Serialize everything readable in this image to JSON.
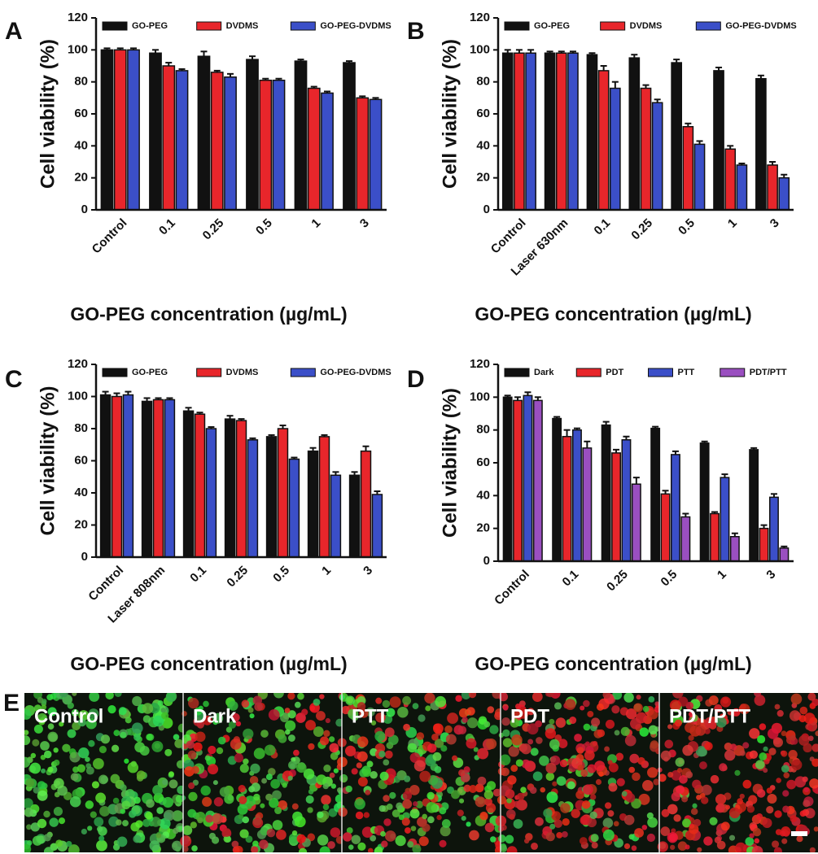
{
  "panel_labels": [
    "A",
    "B",
    "C",
    "D",
    "E"
  ],
  "chart_data": [
    {
      "type": "bar",
      "y_label": "Cell viability (%)",
      "x_label": "GO-PEG concentration (µg/mL)",
      "categories": [
        "Control",
        "0.1",
        "0.25",
        "0.5",
        "1",
        "3"
      ],
      "series": [
        {
          "name": "GO-PEG",
          "color": "#111111",
          "values": [
            100,
            98,
            96,
            94,
            93,
            92
          ],
          "errors": [
            1,
            2,
            3,
            2,
            1,
            1
          ]
        },
        {
          "name": "DVDMS",
          "color": "#e8262b",
          "values": [
            100,
            90,
            86,
            81,
            76,
            70
          ],
          "errors": [
            1,
            2,
            1,
            1,
            1,
            1
          ]
        },
        {
          "name": "GO-PEG-DVDMS",
          "color": "#3b4fc8",
          "values": [
            100,
            87,
            83,
            81,
            73,
            69
          ],
          "errors": [
            1,
            1,
            2,
            1,
            1,
            1
          ]
        }
      ],
      "ylim": [
        0,
        120
      ],
      "yticks": [
        0,
        20,
        40,
        60,
        80,
        100,
        120
      ],
      "legend": "top"
    },
    {
      "type": "bar",
      "y_label": "Cell viability (%)",
      "x_label": "GO-PEG concentration (µg/mL)",
      "categories": [
        "Control",
        "Laser 630nm",
        "0.1",
        "0.25",
        "0.5",
        "1",
        "3"
      ],
      "series": [
        {
          "name": "GO-PEG",
          "color": "#111111",
          "values": [
            98,
            98,
            97,
            95,
            92,
            87,
            82
          ],
          "errors": [
            2,
            1,
            1,
            2,
            2,
            2,
            2
          ]
        },
        {
          "name": "DVDMS",
          "color": "#e8262b",
          "values": [
            98,
            98,
            87,
            76,
            52,
            38,
            28
          ],
          "errors": [
            2,
            1,
            3,
            2,
            2,
            2,
            2
          ]
        },
        {
          "name": "GO-PEG-DVDMS",
          "color": "#3b4fc8",
          "values": [
            98,
            98,
            76,
            67,
            41,
            28,
            20
          ],
          "errors": [
            2,
            1,
            4,
            2,
            2,
            1,
            2
          ]
        }
      ],
      "ylim": [
        0,
        120
      ],
      "yticks": [
        0,
        20,
        40,
        60,
        80,
        100,
        120
      ],
      "legend": "top"
    },
    {
      "type": "bar",
      "y_label": "Cell viability (%)",
      "x_label": "GO-PEG concentration (µg/mL)",
      "categories": [
        "Control",
        "Laser 808nm",
        "0.1",
        "0.25",
        "0.5",
        "1",
        "3"
      ],
      "series": [
        {
          "name": "GO-PEG",
          "color": "#111111",
          "values": [
            101,
            97,
            91,
            86,
            75,
            66,
            51
          ],
          "errors": [
            2,
            2,
            2,
            2,
            1,
            2,
            2
          ]
        },
        {
          "name": "DVDMS",
          "color": "#e8262b",
          "values": [
            100,
            98,
            89,
            85,
            80,
            75,
            66
          ],
          "errors": [
            2,
            1,
            1,
            1,
            2,
            1,
            3
          ]
        },
        {
          "name": "GO-PEG-DVDMS",
          "color": "#3b4fc8",
          "values": [
            101,
            98,
            80,
            73,
            61,
            51,
            39
          ],
          "errors": [
            2,
            1,
            1,
            1,
            1,
            2,
            2
          ]
        }
      ],
      "ylim": [
        0,
        120
      ],
      "yticks": [
        0,
        20,
        40,
        60,
        80,
        100,
        120
      ],
      "legend": "top"
    },
    {
      "type": "bar",
      "y_label": "Cell viability (%)",
      "x_label": "GO-PEG concentration (µg/mL)",
      "categories": [
        "Control",
        "0.1",
        "0.25",
        "0.5",
        "1",
        "3"
      ],
      "series": [
        {
          "name": "Dark",
          "color": "#111111",
          "values": [
            100,
            87,
            83,
            81,
            72,
            68
          ],
          "errors": [
            1,
            1,
            2,
            1,
            1,
            1
          ]
        },
        {
          "name": "PDT",
          "color": "#e8262b",
          "values": [
            98,
            76,
            66,
            41,
            29,
            20
          ],
          "errors": [
            2,
            4,
            2,
            2,
            1,
            2
          ]
        },
        {
          "name": "PTT",
          "color": "#3b4fc8",
          "values": [
            101,
            80,
            74,
            65,
            51,
            39
          ],
          "errors": [
            2,
            1,
            2,
            2,
            2,
            2
          ]
        },
        {
          "name": "PDT/PTT",
          "color": "#9a4fc0",
          "values": [
            98,
            69,
            47,
            27,
            15,
            8
          ],
          "errors": [
            2,
            4,
            4,
            2,
            2,
            1
          ]
        }
      ],
      "ylim": [
        0,
        120
      ],
      "yticks": [
        0,
        20,
        40,
        60,
        80,
        100,
        120
      ],
      "legend": "top"
    }
  ],
  "micrographs": {
    "labels": [
      "Control",
      "Dark",
      "PTT",
      "PDT",
      "PDT/PTT"
    ]
  }
}
